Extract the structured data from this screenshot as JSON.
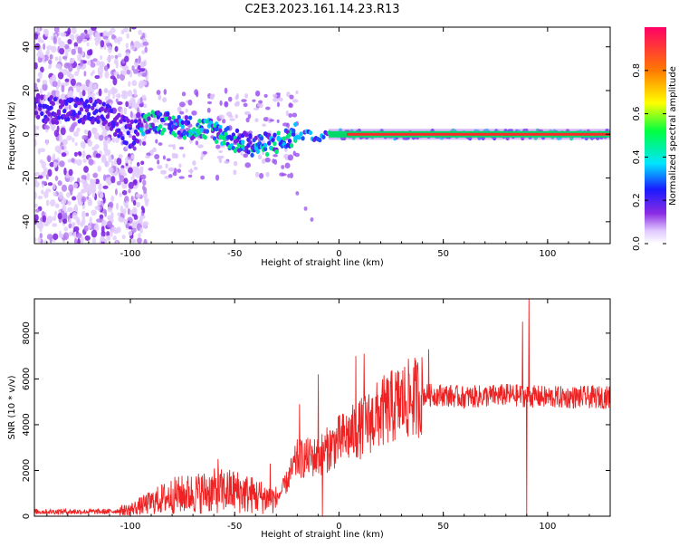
{
  "title": "C2E3.2023.161.14.23.R13",
  "chart_data": [
    {
      "type": "heatmap",
      "xlabel": "Height of straight line (km)",
      "ylabel": "Frequency (Hz)",
      "xlim": [
        -146,
        130
      ],
      "ylim": [
        -50,
        49
      ],
      "xticks": [
        -100,
        -50,
        0,
        50,
        100
      ],
      "yticks": [
        -40,
        -20,
        0,
        20,
        40
      ],
      "colorbar": {
        "label": "Normalized spectral amplitude",
        "range": [
          0.0,
          1.0
        ],
        "ticks": [
          0.0,
          0.2,
          0.4,
          0.6,
          0.8
        ]
      },
      "ridge": [
        {
          "x": -146,
          "y": 12
        },
        {
          "x": -130,
          "y": 11
        },
        {
          "x": -115,
          "y": 10
        },
        {
          "x": -100,
          "y": 0
        },
        {
          "x": -90,
          "y": 7
        },
        {
          "x": -80,
          "y": 4
        },
        {
          "x": -70,
          "y": 3
        },
        {
          "x": -60,
          "y": 2
        },
        {
          "x": -50,
          "y": -3
        },
        {
          "x": -40,
          "y": -5
        },
        {
          "x": -30,
          "y": -4
        },
        {
          "x": -20,
          "y": 0
        },
        {
          "x": -10,
          "y": -1
        },
        {
          "x": 0,
          "y": 0
        },
        {
          "x": 130,
          "y": 0
        }
      ]
    },
    {
      "type": "line",
      "xlabel": "Height of straight line (km)",
      "ylabel": "SNR (10 * v/v)",
      "xlim": [
        -146,
        130
      ],
      "ylim": [
        0,
        9500
      ],
      "xticks": [
        -100,
        -50,
        0,
        50,
        100
      ],
      "yticks": [
        0,
        2000,
        4000,
        6000,
        8000
      ],
      "color": "#ee2222",
      "trend": [
        {
          "x": -146,
          "y": 200
        },
        {
          "x": -110,
          "y": 200
        },
        {
          "x": -100,
          "y": 300
        },
        {
          "x": -90,
          "y": 600
        },
        {
          "x": -80,
          "y": 900
        },
        {
          "x": -70,
          "y": 1000
        },
        {
          "x": -60,
          "y": 1100
        },
        {
          "x": -50,
          "y": 1100
        },
        {
          "x": -40,
          "y": 900
        },
        {
          "x": -30,
          "y": 700
        },
        {
          "x": -25,
          "y": 1500
        },
        {
          "x": -20,
          "y": 2500
        },
        {
          "x": -10,
          "y": 2600
        },
        {
          "x": 0,
          "y": 3300
        },
        {
          "x": 10,
          "y": 3800
        },
        {
          "x": 20,
          "y": 4500
        },
        {
          "x": 30,
          "y": 5000
        },
        {
          "x": 40,
          "y": 5300
        },
        {
          "x": 50,
          "y": 5300
        },
        {
          "x": 60,
          "y": 5200
        },
        {
          "x": 80,
          "y": 5300
        },
        {
          "x": 100,
          "y": 5200
        },
        {
          "x": 130,
          "y": 5200
        }
      ],
      "spikes": [
        {
          "x": -58,
          "y": 2500
        },
        {
          "x": -33,
          "y": 2300
        },
        {
          "x": -19,
          "y": 4900
        },
        {
          "x": -10,
          "y": 6200
        },
        {
          "x": -8,
          "y": 0
        },
        {
          "x": 8,
          "y": 7000
        },
        {
          "x": 12,
          "y": 7100
        },
        {
          "x": 43,
          "y": 7300
        },
        {
          "x": 88,
          "y": 8500
        },
        {
          "x": 90,
          "y": 0
        },
        {
          "x": 91,
          "y": 9500
        }
      ]
    }
  ]
}
